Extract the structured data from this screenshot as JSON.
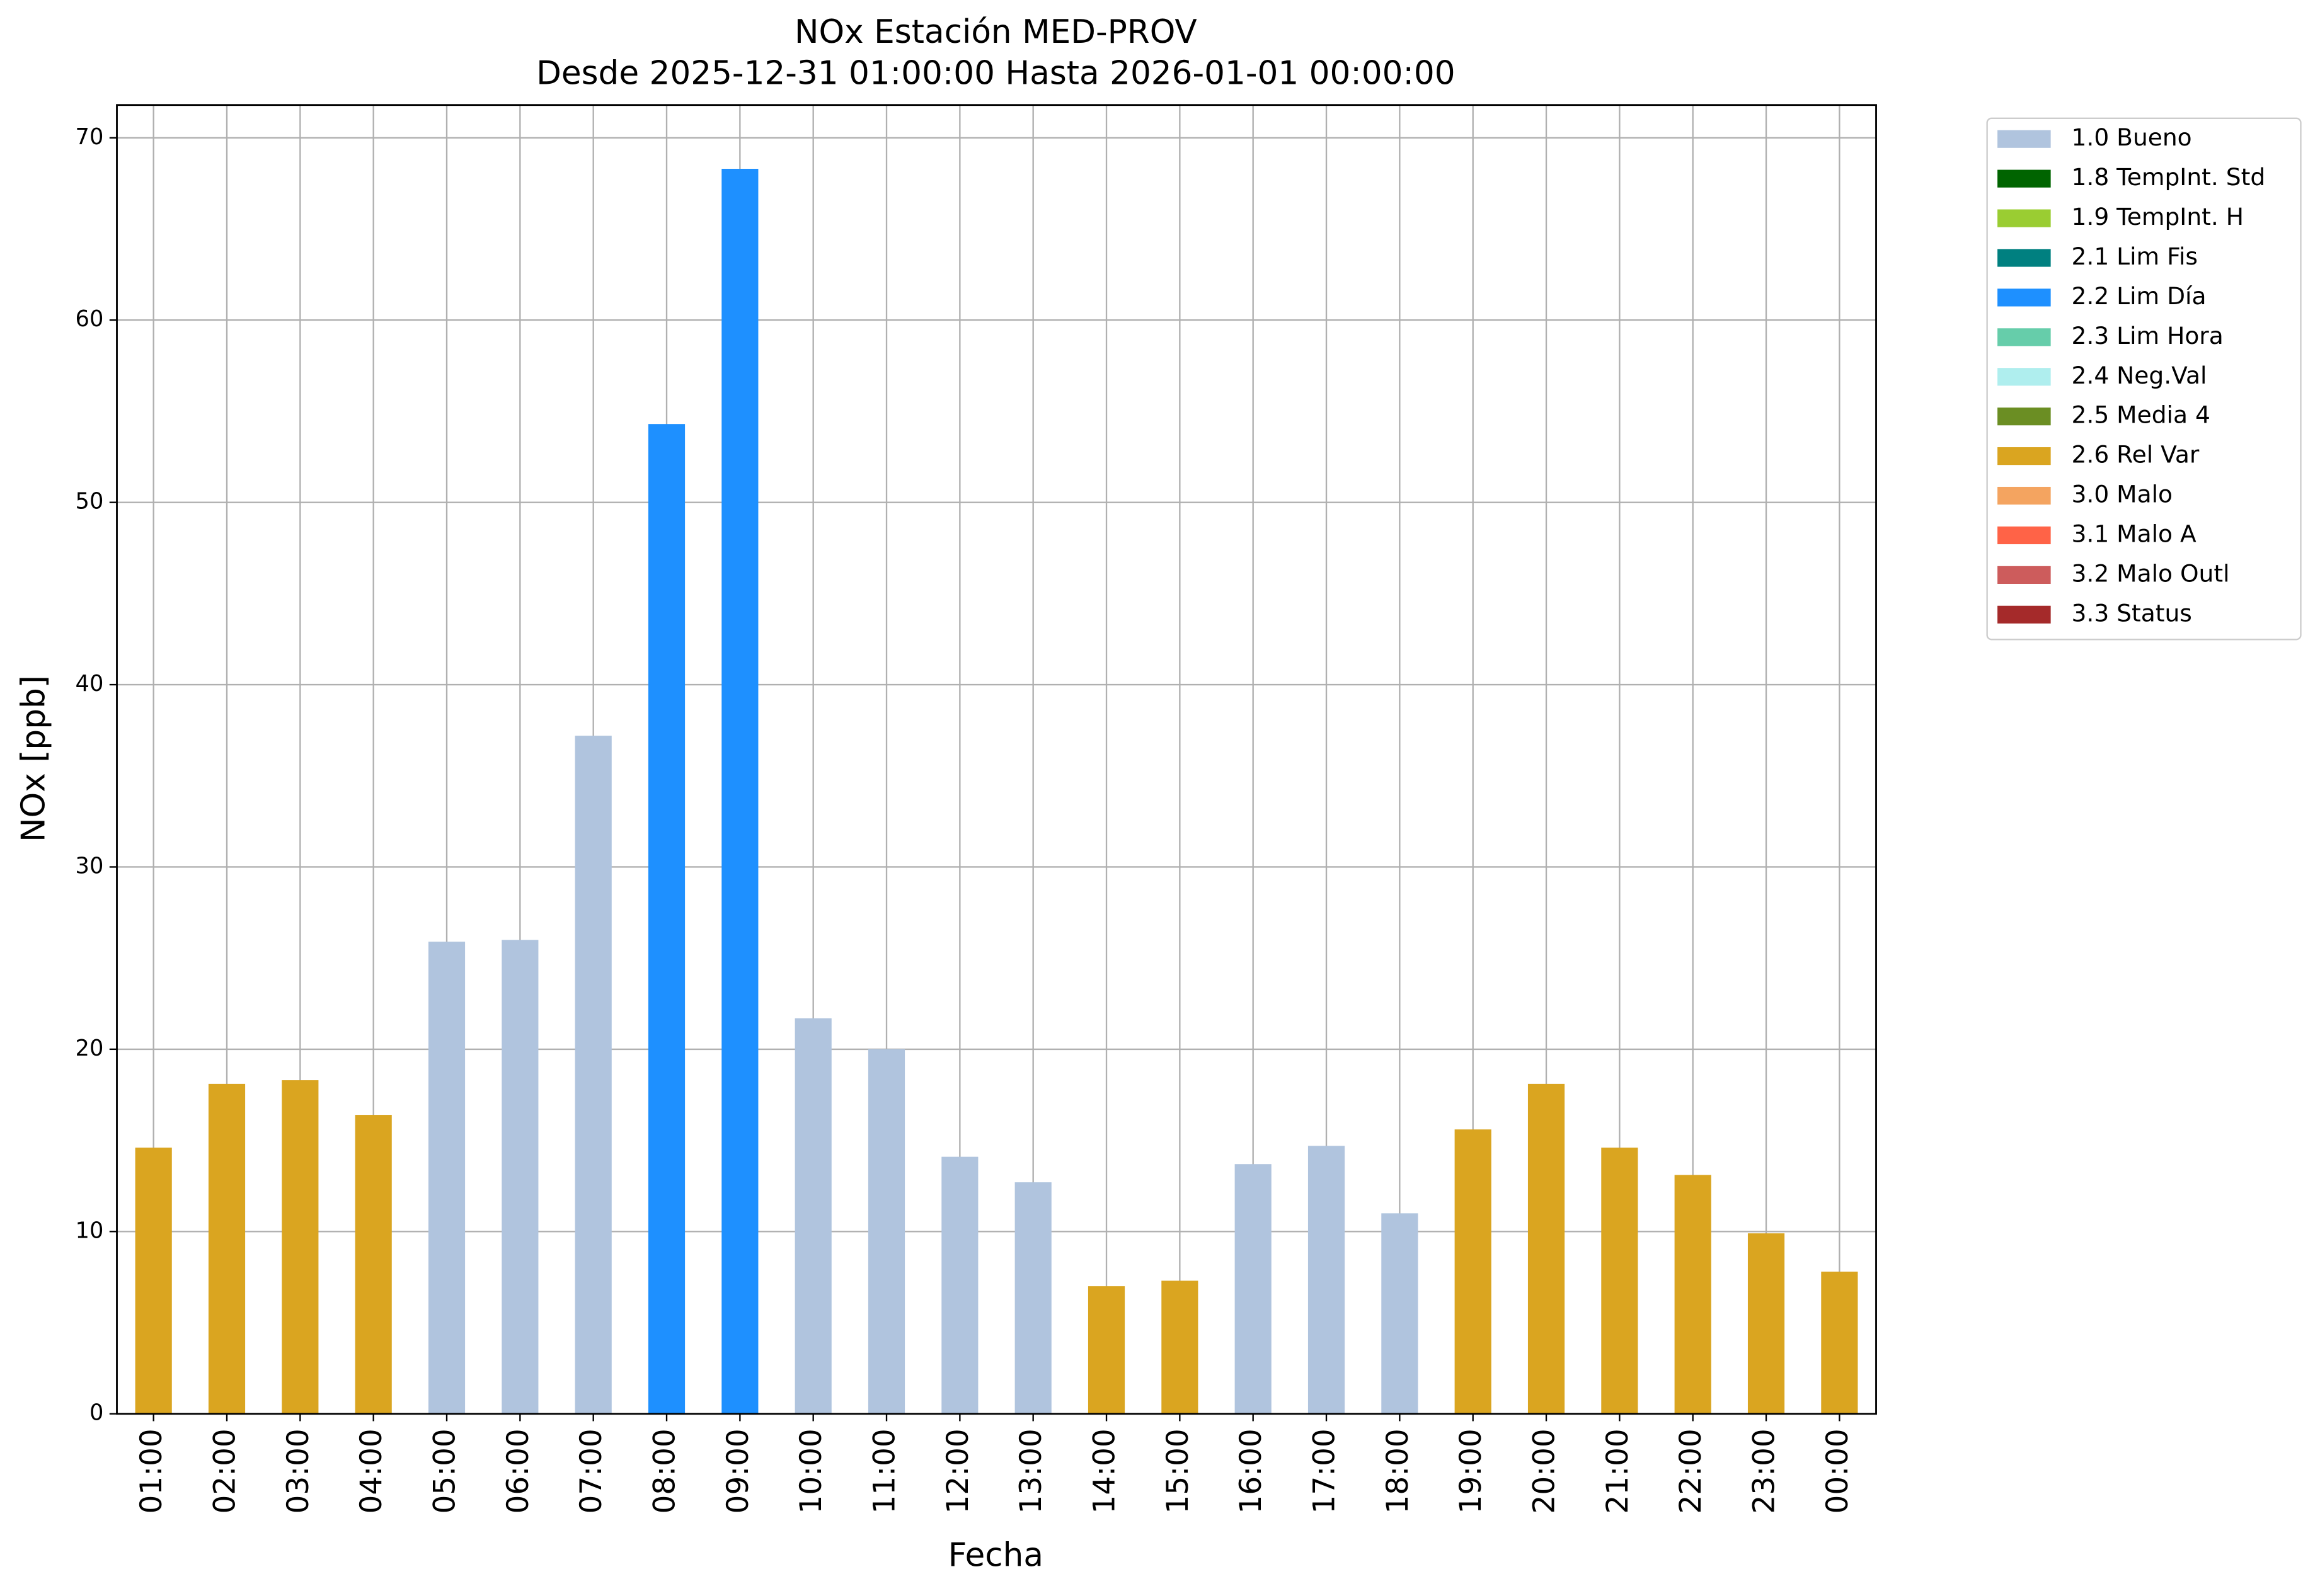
{
  "chart_data": {
    "type": "bar",
    "stacked": true,
    "title": "NOx Estación MED-PROV",
    "subtitle": "Desde 2025-12-31 01:00:00 Hasta 2026-01-01 00:00:00",
    "x_label": "Fecha",
    "y_label": "NOx [ppb]",
    "categories": [
      "01:00",
      "02:00",
      "03:00",
      "04:00",
      "05:00",
      "06:00",
      "07:00",
      "08:00",
      "09:00",
      "10:00",
      "11:00",
      "12:00",
      "13:00",
      "14:00",
      "15:00",
      "16:00",
      "17:00",
      "18:00",
      "19:00",
      "20:00",
      "21:00",
      "22:00",
      "23:00",
      "00:00"
    ],
    "series": [
      {
        "name": "1.0 Bueno",
        "color": "#b0c4de",
        "values": [
          null,
          null,
          null,
          null,
          25.9,
          26.0,
          37.2,
          null,
          null,
          21.7,
          20.0,
          14.1,
          12.7,
          null,
          null,
          13.7,
          14.7,
          11.0,
          null,
          null,
          null,
          null,
          null,
          null
        ]
      },
      {
        "name": "1.8 TempInt. Std",
        "color": "#006400",
        "values": [
          null,
          null,
          null,
          null,
          null,
          null,
          null,
          null,
          null,
          null,
          null,
          null,
          null,
          null,
          null,
          null,
          null,
          null,
          null,
          null,
          null,
          null,
          null,
          null
        ]
      },
      {
        "name": "1.9 TempInt. H",
        "color": "#9acd32",
        "values": [
          null,
          null,
          null,
          null,
          null,
          null,
          null,
          null,
          null,
          null,
          null,
          null,
          null,
          null,
          null,
          null,
          null,
          null,
          null,
          null,
          null,
          null,
          null,
          null
        ]
      },
      {
        "name": "2.1 Lim Fis",
        "color": "#008080",
        "values": [
          null,
          null,
          null,
          null,
          null,
          null,
          null,
          null,
          null,
          null,
          null,
          null,
          null,
          null,
          null,
          null,
          null,
          null,
          null,
          null,
          null,
          null,
          null,
          null
        ]
      },
      {
        "name": "2.2 Lim Día",
        "color": "#1e90ff",
        "values": [
          null,
          null,
          null,
          null,
          null,
          null,
          null,
          54.3,
          68.3,
          null,
          null,
          null,
          null,
          null,
          null,
          null,
          null,
          null,
          null,
          null,
          null,
          null,
          null,
          null
        ]
      },
      {
        "name": "2.3 Lim Hora",
        "color": "#66cdaa",
        "values": [
          null,
          null,
          null,
          null,
          null,
          null,
          null,
          null,
          null,
          null,
          null,
          null,
          null,
          null,
          null,
          null,
          null,
          null,
          null,
          null,
          null,
          null,
          null,
          null
        ]
      },
      {
        "name": "2.4 Neg.Val",
        "color": "#afeeee",
        "values": [
          null,
          null,
          null,
          null,
          null,
          null,
          null,
          null,
          null,
          null,
          null,
          null,
          null,
          null,
          null,
          null,
          null,
          null,
          null,
          null,
          null,
          null,
          null,
          null
        ]
      },
      {
        "name": "2.5 Media 4",
        "color": "#6b8e23",
        "values": [
          null,
          null,
          null,
          null,
          null,
          null,
          null,
          null,
          null,
          null,
          null,
          null,
          null,
          null,
          null,
          null,
          null,
          null,
          null,
          null,
          null,
          null,
          null,
          null
        ]
      },
      {
        "name": "2.6 Rel Var",
        "color": "#daa520",
        "values": [
          14.6,
          18.1,
          18.3,
          16.4,
          null,
          null,
          null,
          null,
          null,
          null,
          null,
          null,
          null,
          7.0,
          7.3,
          null,
          null,
          null,
          15.6,
          18.1,
          14.6,
          13.1,
          9.9,
          7.8
        ]
      },
      {
        "name": "3.0 Malo",
        "color": "#f4a460",
        "values": [
          null,
          null,
          null,
          null,
          null,
          null,
          null,
          null,
          null,
          null,
          null,
          null,
          null,
          null,
          null,
          null,
          null,
          null,
          null,
          null,
          null,
          null,
          null,
          null
        ]
      },
      {
        "name": "3.1 Malo A",
        "color": "#ff6347",
        "values": [
          null,
          null,
          null,
          null,
          null,
          null,
          null,
          null,
          null,
          null,
          null,
          null,
          null,
          null,
          null,
          null,
          null,
          null,
          null,
          null,
          null,
          null,
          null,
          null
        ]
      },
      {
        "name": "3.2 Malo Outl",
        "color": "#cd5c5c",
        "values": [
          null,
          null,
          null,
          null,
          null,
          null,
          null,
          null,
          null,
          null,
          null,
          null,
          null,
          null,
          null,
          null,
          null,
          null,
          null,
          null,
          null,
          null,
          null,
          null
        ]
      },
      {
        "name": "3.3 Status",
        "color": "#a52a2a",
        "values": [
          null,
          null,
          null,
          null,
          null,
          null,
          null,
          null,
          null,
          null,
          null,
          null,
          null,
          null,
          null,
          null,
          null,
          null,
          null,
          null,
          null,
          null,
          null,
          null
        ]
      }
    ],
    "ylim": [
      0,
      71.8
    ],
    "yticks": [
      0,
      10,
      20,
      30,
      40,
      50,
      60,
      70
    ],
    "grid": true,
    "legend": "outside-right"
  }
}
